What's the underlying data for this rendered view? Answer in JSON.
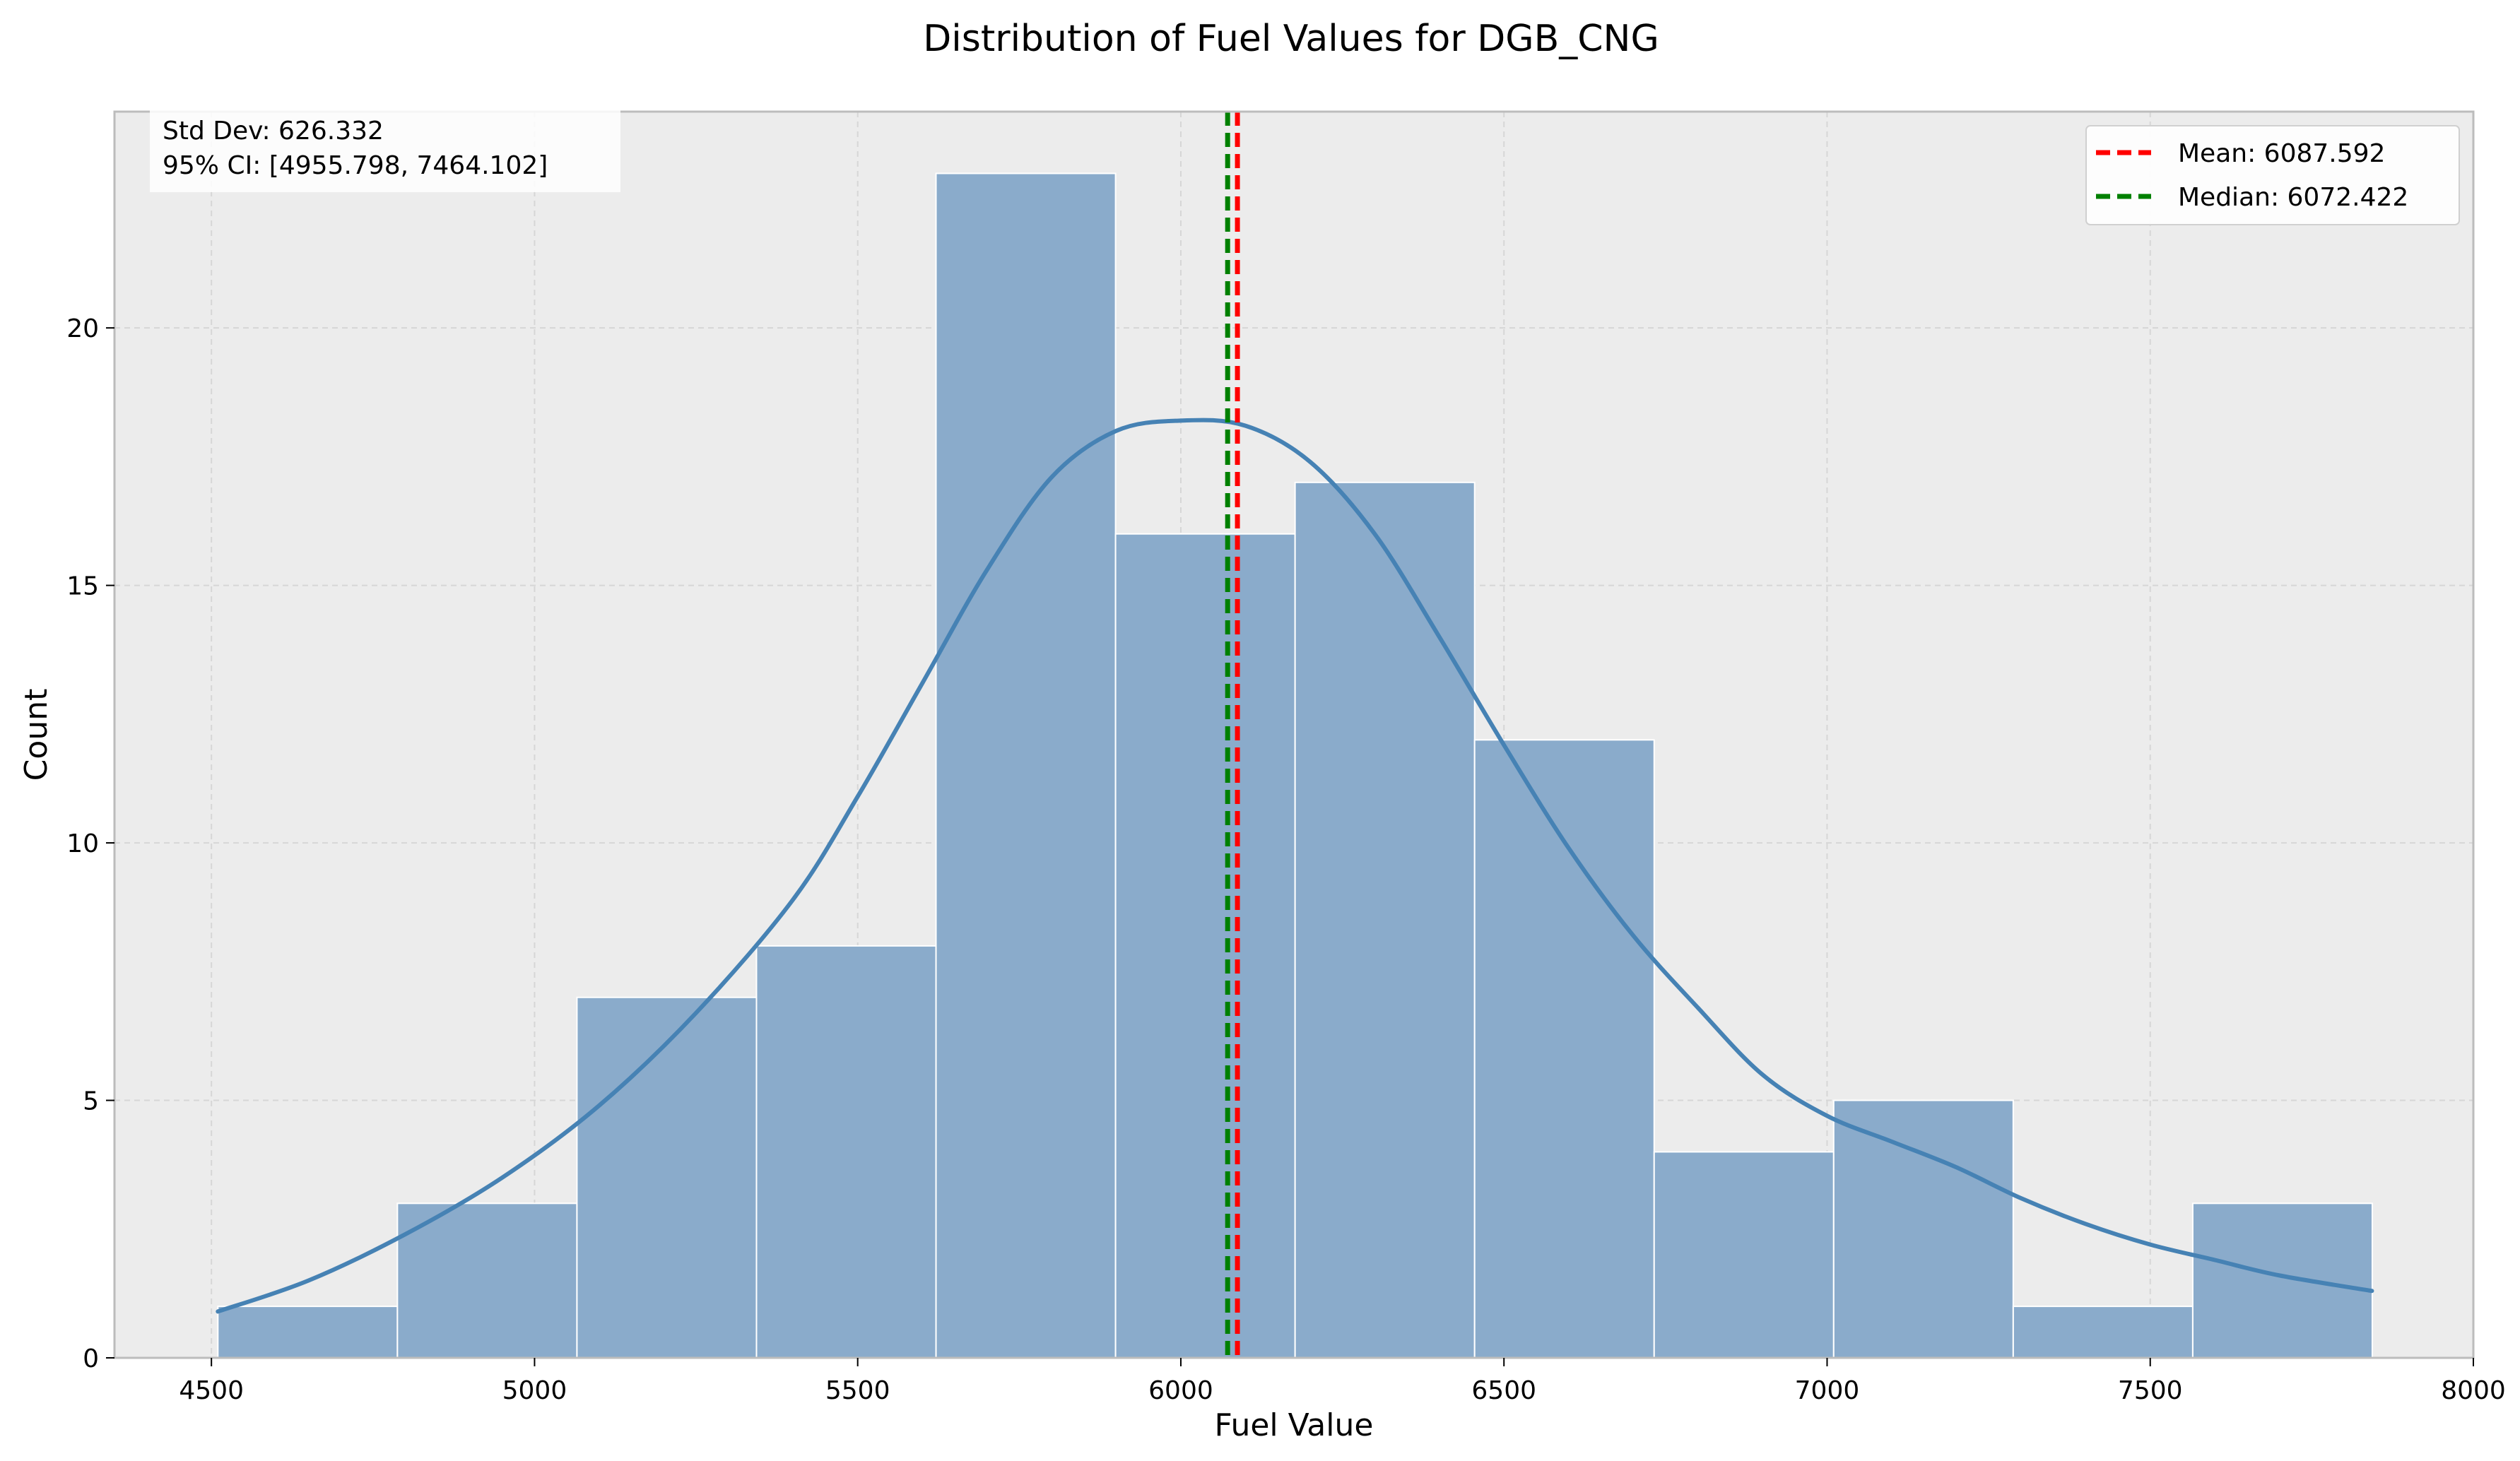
{
  "chart_data": {
    "type": "bar",
    "title": "Distribution of Fuel Values for DGB_CNG",
    "xlabel": "Fuel Value",
    "ylabel": "Count",
    "xlim": [
      4350,
      8000
    ],
    "ylim": [
      0,
      24.2
    ],
    "x_ticks": [
      4500,
      5000,
      5500,
      6000,
      6500,
      7000,
      7500,
      8000
    ],
    "y_ticks": [
      0,
      5,
      10,
      15,
      20
    ],
    "grid": true,
    "bins": {
      "start": 4510,
      "width": 277.8,
      "counts": [
        1,
        3,
        7,
        8,
        23,
        16,
        17,
        12,
        4,
        5,
        1,
        3
      ]
    },
    "kde": {
      "x": [
        4510,
        4650,
        4800,
        4950,
        5100,
        5250,
        5400,
        5500,
        5600,
        5700,
        5800,
        5900,
        6000,
        6100,
        6200,
        6300,
        6400,
        6500,
        6600,
        6700,
        6800,
        6900,
        7000,
        7100,
        7200,
        7300,
        7400,
        7500,
        7600,
        7700,
        7843
      ],
      "y": [
        0.9,
        1.5,
        2.4,
        3.5,
        4.9,
        6.7,
        8.9,
        10.9,
        13.1,
        15.3,
        17.1,
        18.0,
        18.2,
        18.1,
        17.4,
        16.0,
        14.0,
        11.9,
        9.9,
        8.2,
        6.8,
        5.5,
        4.7,
        4.2,
        3.7,
        3.1,
        2.6,
        2.2,
        1.9,
        1.6,
        1.3
      ]
    },
    "reference_lines": [
      {
        "label": "Mean: 6087.592",
        "value": 6087.592,
        "color": "#ff0000"
      },
      {
        "label": "Median: 6072.422",
        "value": 6072.422,
        "color": "#008000"
      }
    ],
    "stats_box": [
      "Std Dev: 626.332",
      "95% CI: [4955.798, 7464.102]"
    ],
    "legend_position": "top-right",
    "colors": {
      "bar_fill": "#8aabcb",
      "kde_line": "#4682b4",
      "plot_background": "#ececec"
    }
  }
}
